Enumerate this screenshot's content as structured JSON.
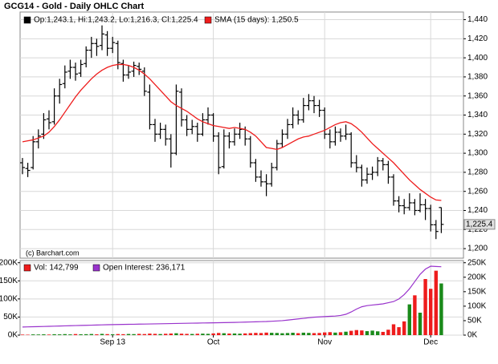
{
  "chart_data": [
    {
      "type": "ohlc",
      "title": "GCG14 - Gold - Daily OHLC Chart",
      "annotation": "(c) Barchart.com",
      "grid": true,
      "ylim": [
        1190,
        1448
      ],
      "yticks": [
        {
          "value": 1200,
          "label": "1,200"
        },
        {
          "value": 1220,
          "label": "1,220"
        },
        {
          "value": 1240,
          "label": "1,240"
        },
        {
          "value": 1260,
          "label": "1,260"
        },
        {
          "value": 1280,
          "label": "1,280"
        },
        {
          "value": 1300,
          "label": "1,300"
        },
        {
          "value": 1320,
          "label": "1,320"
        },
        {
          "value": 1340,
          "label": "1,340"
        },
        {
          "value": 1360,
          "label": "1,360"
        },
        {
          "value": 1380,
          "label": "1,380"
        },
        {
          "value": 1400,
          "label": "1,400"
        },
        {
          "value": 1420,
          "label": "1,420"
        },
        {
          "value": 1440,
          "label": "1,440"
        }
      ],
      "series": [
        {
          "name": "Op:1,243.1, Hi:1,243.2, Lo:1,216.3, Cl:1,225.4",
          "color": "#000000",
          "last_label": "1,225.4",
          "ohlc": [
            [
              1290,
              1295,
              1278,
              1285
            ],
            [
              1284,
              1290,
              1275,
              1282
            ],
            [
              1285,
              1318,
              1283,
              1312
            ],
            [
              1312,
              1325,
              1305,
              1318
            ],
            [
              1320,
              1342,
              1315,
              1335
            ],
            [
              1336,
              1345,
              1325,
              1332
            ],
            [
              1333,
              1368,
              1330,
              1360
            ],
            [
              1360,
              1378,
              1352,
              1372
            ],
            [
              1373,
              1392,
              1368,
              1385
            ],
            [
              1386,
              1398,
              1378,
              1390
            ],
            [
              1390,
              1395,
              1376,
              1383
            ],
            [
              1384,
              1398,
              1380,
              1393
            ],
            [
              1394,
              1412,
              1390,
              1408
            ],
            [
              1408,
              1422,
              1400,
              1415
            ],
            [
              1415,
              1420,
              1402,
              1412
            ],
            [
              1413,
              1434,
              1408,
              1425
            ],
            [
              1424,
              1428,
              1402,
              1410
            ],
            [
              1410,
              1422,
              1405,
              1416
            ],
            [
              1415,
              1418,
              1388,
              1395
            ],
            [
              1394,
              1398,
              1375,
              1382
            ],
            [
              1382,
              1392,
              1378,
              1385
            ],
            [
              1386,
              1396,
              1380,
              1392
            ],
            [
              1391,
              1395,
              1382,
              1388
            ],
            [
              1386,
              1390,
              1360,
              1365
            ],
            [
              1364,
              1372,
              1325,
              1330
            ],
            [
              1330,
              1336,
              1312,
              1320
            ],
            [
              1320,
              1332,
              1315,
              1325
            ],
            [
              1325,
              1330,
              1308,
              1315
            ],
            [
              1315,
              1320,
              1285,
              1300
            ],
            [
              1300,
              1372,
              1298,
              1365
            ],
            [
              1364,
              1368,
              1328,
              1335
            ],
            [
              1335,
              1340,
              1318,
              1325
            ],
            [
              1325,
              1335,
              1320,
              1328
            ],
            [
              1328,
              1332,
              1312,
              1320
            ],
            [
              1320,
              1342,
              1318,
              1335
            ],
            [
              1335,
              1348,
              1330,
              1340
            ],
            [
              1340,
              1342,
              1312,
              1318
            ],
            [
              1318,
              1322,
              1278,
              1285
            ],
            [
              1286,
              1325,
              1284,
              1318
            ],
            [
              1318,
              1322,
              1305,
              1312
            ],
            [
              1312,
              1326,
              1308,
              1320
            ],
            [
              1320,
              1332,
              1315,
              1325
            ],
            [
              1325,
              1328,
              1308,
              1315
            ],
            [
              1315,
              1318,
              1285,
              1290
            ],
            [
              1290,
              1294,
              1270,
              1275
            ],
            [
              1275,
              1282,
              1265,
              1270
            ],
            [
              1270,
              1278,
              1255,
              1268
            ],
            [
              1268,
              1290,
              1265,
              1285
            ],
            [
              1285,
              1314,
              1282,
              1310
            ],
            [
              1310,
              1325,
              1306,
              1320
            ],
            [
              1320,
              1336,
              1315,
              1330
            ],
            [
              1330,
              1348,
              1326,
              1340
            ],
            [
              1340,
              1345,
              1330,
              1335
            ],
            [
              1335,
              1358,
              1332,
              1350
            ],
            [
              1350,
              1362,
              1345,
              1355
            ],
            [
              1355,
              1360,
              1342,
              1350
            ],
            [
              1350,
              1356,
              1338,
              1345
            ],
            [
              1345,
              1348,
              1315,
              1320
            ],
            [
              1320,
              1325,
              1305,
              1312
            ],
            [
              1312,
              1328,
              1308,
              1322
            ],
            [
              1322,
              1326,
              1312,
              1318
            ],
            [
              1318,
              1330,
              1314,
              1320
            ],
            [
              1320,
              1322,
              1285,
              1290
            ],
            [
              1290,
              1298,
              1280,
              1285
            ],
            [
              1285,
              1288,
              1265,
              1272
            ],
            [
              1272,
              1285,
              1268,
              1278
            ],
            [
              1278,
              1286,
              1272,
              1280
            ],
            [
              1280,
              1296,
              1276,
              1292
            ],
            [
              1292,
              1295,
              1282,
              1288
            ],
            [
              1288,
              1292,
              1268,
              1275
            ],
            [
              1275,
              1278,
              1245,
              1250
            ],
            [
              1250,
              1255,
              1238,
              1245
            ],
            [
              1245,
              1252,
              1236,
              1243
            ],
            [
              1243,
              1258,
              1240,
              1248
            ],
            [
              1248,
              1252,
              1235,
              1240
            ],
            [
              1240,
              1258,
              1238,
              1246
            ],
            [
              1246,
              1252,
              1230,
              1242
            ],
            [
              1242,
              1246,
              1218,
              1225
            ],
            [
              1225,
              1230,
              1210,
              1218
            ],
            [
              1243.1,
              1243.2,
              1216.3,
              1225.4
            ]
          ]
        },
        {
          "name": "SMA (15 days): 1,250.5",
          "color": "#ee1c1c",
          "values": [
            1312,
            1313,
            1314,
            1316,
            1318,
            1322,
            1328,
            1335,
            1343,
            1351,
            1359,
            1366,
            1372,
            1378,
            1383,
            1387,
            1390,
            1392,
            1393,
            1393,
            1392,
            1390,
            1387,
            1383,
            1378,
            1372,
            1366,
            1360,
            1354,
            1350,
            1347,
            1344,
            1340,
            1336,
            1333,
            1331,
            1329,
            1328,
            1327,
            1326,
            1327,
            1326,
            1325,
            1322,
            1318,
            1312,
            1306,
            1305,
            1304,
            1306,
            1309,
            1312,
            1315,
            1317,
            1318,
            1320,
            1322,
            1324,
            1327,
            1330,
            1332,
            1333,
            1331,
            1327,
            1322,
            1316,
            1310,
            1305,
            1300,
            1295,
            1290,
            1284,
            1278,
            1272,
            1267,
            1262,
            1258,
            1254,
            1251,
            1250.5
          ]
        }
      ]
    },
    {
      "type": "bar",
      "grid": true,
      "up_color": "#1a8a1a",
      "down_color": "#ee1c1c",
      "categories": [
        null,
        null,
        null,
        null,
        null,
        null,
        null,
        null,
        null,
        null,
        null,
        null,
        null,
        null,
        null,
        null,
        null,
        "Sep 13",
        null,
        null,
        null,
        null,
        null,
        null,
        null,
        null,
        null,
        null,
        null,
        null,
        null,
        null,
        null,
        null,
        null,
        null,
        "Oct",
        null,
        null,
        null,
        null,
        null,
        null,
        null,
        null,
        null,
        null,
        null,
        null,
        null,
        null,
        null,
        null,
        null,
        null,
        null,
        null,
        "Nov",
        null,
        null,
        null,
        null,
        null,
        null,
        null,
        null,
        null,
        null,
        null,
        null,
        null,
        null,
        null,
        null,
        null,
        null,
        null,
        "Dec",
        null,
        null
      ],
      "ylim": [
        0,
        206000
      ],
      "yticks": [
        {
          "value": 0,
          "label": "0K"
        },
        {
          "value": 50000,
          "label": "50K"
        },
        {
          "value": 100000,
          "label": "100K"
        },
        {
          "value": 150000,
          "label": "150K"
        },
        {
          "value": 200000,
          "label": "200K"
        }
      ],
      "y2lim": [
        0,
        257500
      ],
      "y2ticks": [
        {
          "value": 0,
          "label": "0K"
        },
        {
          "value": 50000,
          "label": "50K"
        },
        {
          "value": 100000,
          "label": "100K"
        },
        {
          "value": 150000,
          "label": "150K"
        },
        {
          "value": 200000,
          "label": "200K"
        },
        {
          "value": 250000,
          "label": "250K"
        }
      ],
      "series": [
        {
          "name": "Vol: 142,799",
          "color": "#ee1c1c",
          "values": [
            1500,
            1200,
            2000,
            1800,
            2200,
            1600,
            2500,
            2100,
            2800,
            2000,
            3000,
            2400,
            2600,
            3100,
            2200,
            3500,
            2800,
            2400,
            3000,
            2600,
            3200,
            2800,
            3500,
            3000,
            4200,
            3600,
            3000,
            3800,
            4500,
            5200,
            4000,
            3500,
            3200,
            3800,
            4100,
            3600,
            4800,
            6000,
            5200,
            4400,
            4600,
            4000,
            4800,
            5500,
            6200,
            5800,
            7000,
            6400,
            6000,
            5200,
            5800,
            6600,
            5400,
            6800,
            6200,
            5600,
            6000,
            7500,
            8200,
            7000,
            8000,
            9500,
            12000,
            14000,
            13000,
            11000,
            12500,
            10500,
            9000,
            15000,
            30000,
            22000,
            38000,
            85000,
            110000,
            62000,
            155000,
            128000,
            178000,
            142799
          ]
        },
        {
          "name": "Open Interest: 236,171",
          "color": "#9933cc",
          "axis": "y2",
          "values": [
            28000,
            28500,
            29000,
            29500,
            30000,
            30500,
            31000,
            31500,
            32000,
            32500,
            33000,
            33500,
            34000,
            34500,
            35000,
            35500,
            36000,
            36300,
            36600,
            37000,
            37300,
            37600,
            38000,
            38300,
            38600,
            39000,
            39300,
            39600,
            40000,
            40300,
            40600,
            41000,
            41300,
            41600,
            42000,
            42300,
            42600,
            43000,
            43300,
            43600,
            44000,
            44500,
            45000,
            45500,
            46000,
            46500,
            47000,
            48000,
            49000,
            50000,
            52000,
            54000,
            56000,
            58000,
            60000,
            62000,
            63000,
            64000,
            65000,
            66000,
            68000,
            72000,
            80000,
            90000,
            98000,
            102000,
            104000,
            106000,
            108000,
            112000,
            116000,
            125000,
            140000,
            160000,
            185000,
            210000,
            228000,
            238000,
            237000,
            236171
          ]
        }
      ]
    }
  ]
}
